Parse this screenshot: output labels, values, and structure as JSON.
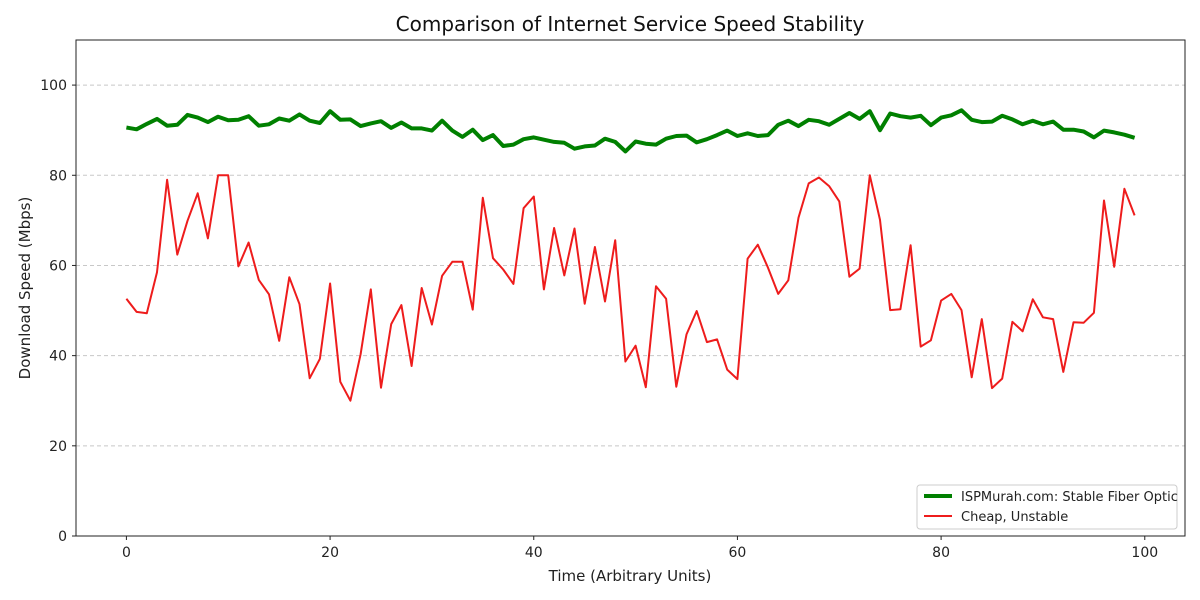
{
  "chart_data": {
    "type": "line",
    "title": "Comparison of Internet Service Speed Stability",
    "xlabel": "Time (Arbitrary Units)",
    "ylabel": "Download Speed (Mbps)",
    "xlim": [
      -4.95,
      103.95
    ],
    "ylim": [
      0,
      110
    ],
    "xticks": [
      "0",
      "20",
      "40",
      "60",
      "80",
      "100"
    ],
    "yticks": [
      "0",
      "20",
      "40",
      "60",
      "80",
      "100"
    ],
    "grid": "horizontal dashed",
    "legend_position": "bottom-right",
    "x": "0..99 step 1",
    "series": [
      {
        "name": "ISPMurah.com: Stable Fiber Optic",
        "color": "#008000",
        "values": [
          90.6,
          90.2,
          91.4,
          92.5,
          91,
          91.2,
          93.4,
          92.8,
          91.8,
          93,
          92.2,
          92.3,
          93.1,
          91,
          91.3,
          92.6,
          92.1,
          93.5,
          92.1,
          91.6,
          94.2,
          92.3,
          92.4,
          90.9,
          91.5,
          92,
          90.5,
          91.7,
          90.4,
          90.4,
          89.9,
          92.1,
          89.9,
          88.5,
          90.1,
          87.8,
          88.9,
          86.5,
          86.8,
          88,
          88.4,
          87.9,
          87.4,
          87.2,
          85.9,
          86.4,
          86.6,
          88.1,
          87.4,
          85.3,
          87.5,
          87,
          86.8,
          88.1,
          88.7,
          88.8,
          87.3,
          88,
          88.9,
          89.9,
          88.7,
          89.3,
          88.7,
          88.9,
          91.2,
          92.1,
          90.9,
          92.3,
          92,
          91.2,
          92.5,
          93.8,
          92.5,
          94.2,
          90,
          93.7,
          93.1,
          92.8,
          93.2,
          91.1,
          92.8,
          93.3,
          94.4,
          92.3,
          91.8,
          91.9,
          93.2,
          92.4,
          91.3,
          92.1,
          91.3,
          91.9,
          90.1,
          90.1,
          89.7,
          88.4,
          89.9,
          89.5,
          89,
          88.3
        ]
      },
      {
        "name": "Cheap, Unstable",
        "color": "#ee1c1c",
        "values": [
          52.6,
          49.7,
          49.4,
          58.5,
          79,
          62.4,
          69.9,
          76,
          66,
          80,
          80,
          59.8,
          65.1,
          56.8,
          53.6,
          43.3,
          57.4,
          51.4,
          35,
          39.3,
          56,
          34.2,
          30,
          40.3,
          54.7,
          32.9,
          47,
          51.2,
          37.7,
          55,
          46.9,
          57.7,
          60.8,
          60.8,
          50.2,
          75,
          61.6,
          59.1,
          55.9,
          72.7,
          75.3,
          54.7,
          68.3,
          57.8,
          68.2,
          51.5,
          64.1,
          52,
          65.6,
          38.7,
          42.2,
          33,
          55.4,
          52.6,
          33.1,
          44.7,
          49.9,
          43,
          43.6,
          36.9,
          34.8,
          61.5,
          64.6,
          59.5,
          53.7,
          56.7,
          70.6,
          78.2,
          79.5,
          77.6,
          74.2,
          57.5,
          59.3,
          80,
          70.1,
          50.1,
          50.3,
          64.5,
          42,
          43.4,
          52.2,
          53.7,
          50.1,
          35.2,
          48.1,
          32.8,
          34.9,
          47.5,
          45.4,
          52.5,
          48.5,
          48.1,
          36.4,
          47.4,
          47.3,
          49.5,
          74.4,
          59.7,
          77,
          71.1
        ]
      }
    ]
  }
}
